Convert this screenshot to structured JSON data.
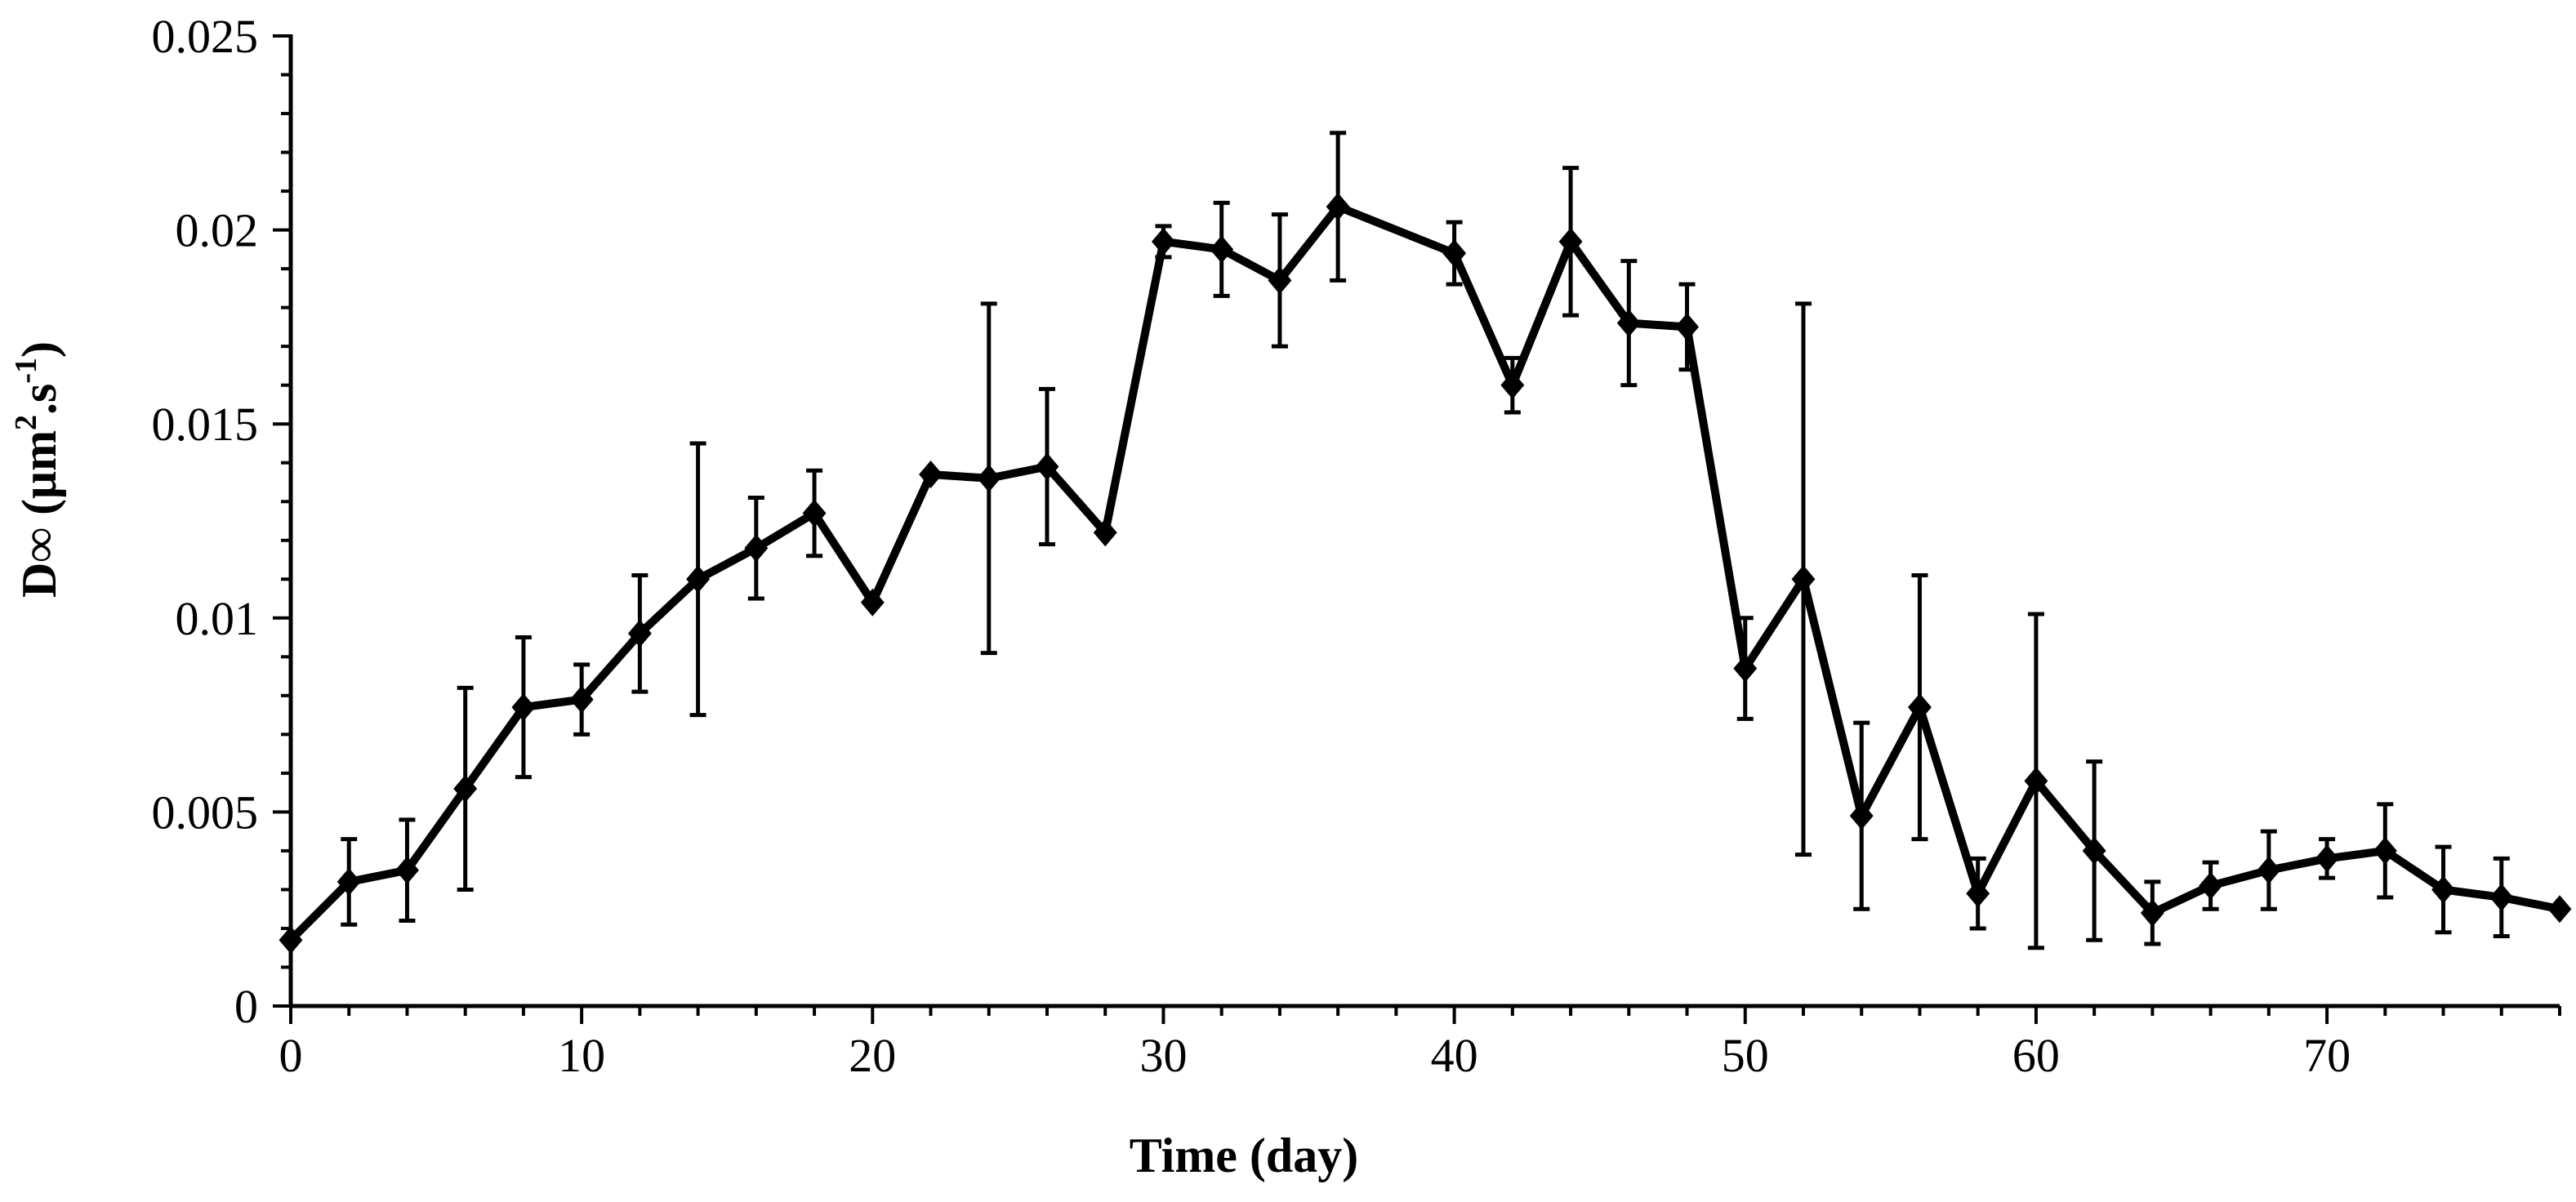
{
  "chart_data": {
    "type": "line",
    "title": "",
    "xlabel": "Time (day)",
    "ylabel": {
      "prefix": "D∞ (μm",
      "sup1": "2",
      "mid": ".s",
      "sup2": "-1",
      "suffix": ")"
    },
    "xlim": [
      0,
      78
    ],
    "ylim": [
      0,
      0.025
    ],
    "xticks": [
      0,
      10,
      20,
      30,
      40,
      50,
      60,
      70
    ],
    "yticks": [
      0,
      0.005,
      0.01,
      0.015,
      0.02,
      0.025
    ],
    "ytick_labels": [
      "0",
      "0.005",
      "0.01",
      "0.015",
      "0.02",
      "0.025"
    ],
    "xticks_minor_step": 2,
    "yticks_minor_step": 0.001,
    "grid": false,
    "legend": "none",
    "marker": "diamond",
    "color": "#000000",
    "series": [
      {
        "name": "D∞",
        "x": [
          0,
          2,
          4,
          6,
          8,
          10,
          12,
          14,
          16,
          18,
          20,
          22,
          24,
          26,
          28,
          30,
          32,
          34,
          36,
          40,
          42,
          44,
          46,
          48,
          50,
          52,
          54,
          56,
          58,
          60,
          62,
          64,
          66,
          68,
          70,
          72,
          74,
          76,
          78
        ],
        "y": [
          0.0017,
          0.0032,
          0.0035,
          0.0056,
          0.0077,
          0.0079,
          0.0096,
          0.011,
          0.0118,
          0.0127,
          0.0104,
          0.0137,
          0.0136,
          0.0139,
          0.0122,
          0.0197,
          0.0195,
          0.0187,
          0.0206,
          0.0194,
          0.016,
          0.0197,
          0.0176,
          0.0175,
          0.0087,
          0.011,
          0.0049,
          0.0077,
          0.0029,
          0.0058,
          0.004,
          0.0024,
          0.0031,
          0.0035,
          0.0038,
          0.004,
          0.003,
          0.0028,
          0.0025
        ],
        "error": [
          0,
          0.0011,
          0.0013,
          0.0026,
          0.0018,
          0.0009,
          0.0015,
          0.0035,
          0.0013,
          0.0011,
          0,
          0,
          0.0045,
          0.002,
          0,
          0.0004,
          0.0012,
          0.0017,
          0.0019,
          0.0008,
          0.0007,
          0.0019,
          0.0016,
          0.0011,
          0.0013,
          0.0071,
          0.0024,
          0.0034,
          0.0009,
          0.0043,
          0.0023,
          0.0008,
          0.0006,
          0.001,
          0.0005,
          0.0012,
          0.0011,
          0.001,
          0
        ]
      }
    ]
  }
}
